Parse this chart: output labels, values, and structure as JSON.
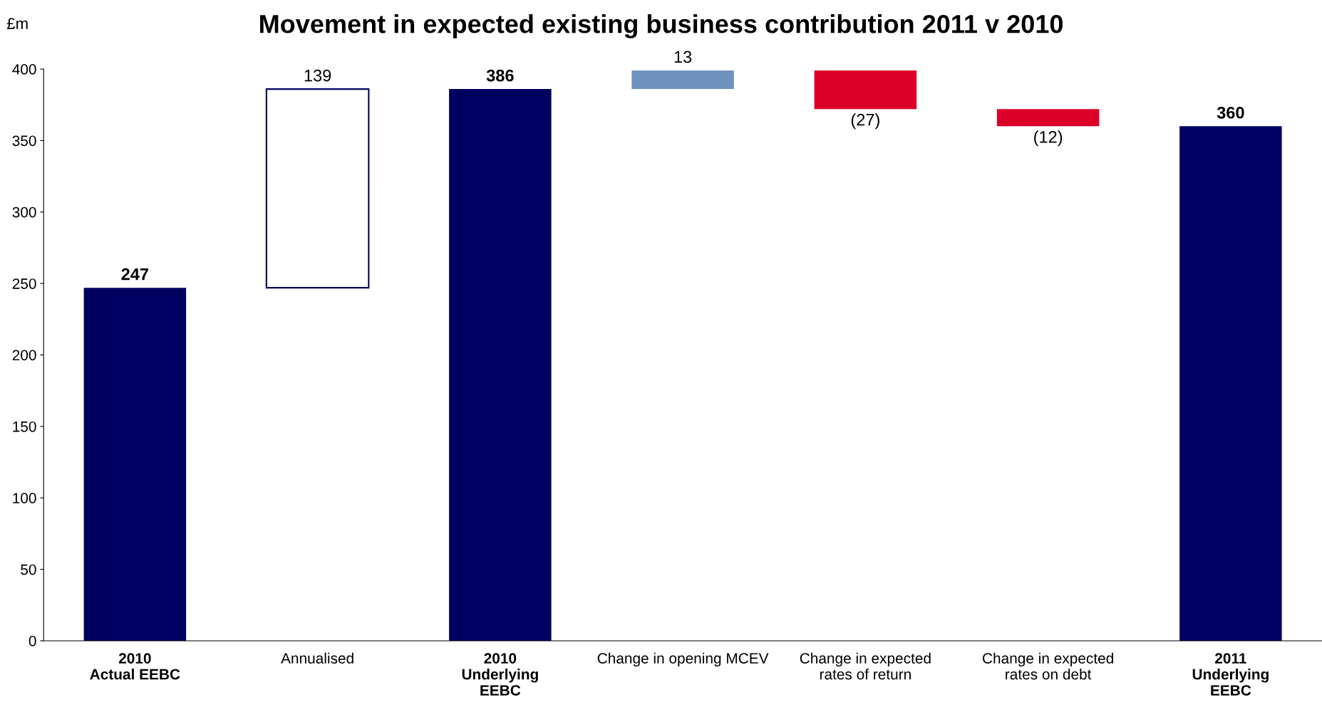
{
  "chart_data": {
    "type": "bar",
    "title": "Movement in expected existing business contribution 2011 v 2010",
    "ylabel": "£m",
    "categories": [
      "2010\nActual EEBC",
      "Annualised",
      "2010\nUnderlying\nEEBC",
      "Change in opening MCEV",
      "Change in expected\nrates of return",
      "Change in expected\nrates on debt",
      "2011\nUnderlying\nEEBC"
    ],
    "values": [
      247,
      139,
      386,
      13,
      -27,
      -12,
      360
    ],
    "base": [
      0,
      247,
      0,
      386,
      399,
      372,
      0
    ],
    "colors": [
      "#000060",
      "#ffffff",
      "#000060",
      "#7092be",
      "#dc0028",
      "#dc0028",
      "#000060"
    ],
    "value_labels": [
      "247",
      "139",
      "386",
      "13",
      "(27)",
      "(12)",
      "360"
    ],
    "ylim": [
      0,
      400
    ],
    "yticks": [
      0,
      50,
      100,
      150,
      200,
      250,
      300,
      350,
      400
    ],
    "grid": false,
    "legend": false
  }
}
